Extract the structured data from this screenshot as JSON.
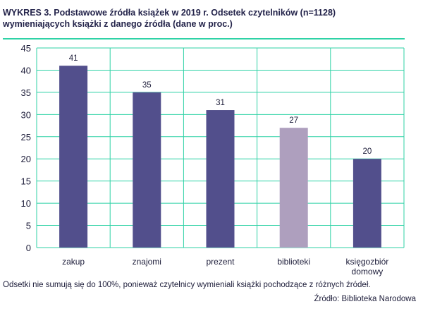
{
  "title": {
    "line1": "WYKRES 3. Podstawowe źródła książek w 2019 r. Odsetek czytelników (n=1128)",
    "line2": "wymieniających książki z danego źródła (dane w proc.)"
  },
  "footnote": "Odsetki nie sumują się do 100%, ponieważ czytelnicy wymieniali książki pochodzące z różnych źródeł.",
  "source": "Źródło: Biblioteka Narodowa",
  "colors": {
    "bar": "#524f8c",
    "bar_highlight": "#ae9fbe",
    "grid": "#2fd2a6",
    "axis_text": "#1d1d3a"
  },
  "chart_data": {
    "type": "bar",
    "title": "Podstawowe źródła książek w 2019 r.",
    "categories": [
      [
        "zakup"
      ],
      [
        "znajomi"
      ],
      [
        "prezent"
      ],
      [
        "biblioteki"
      ],
      [
        "księgozbiór",
        "domowy"
      ]
    ],
    "values": [
      41,
      35,
      31,
      27,
      20
    ],
    "value_labels": [
      "41",
      "35",
      "31",
      "27",
      "20"
    ],
    "highlight_index": 3,
    "ylim": [
      0,
      45
    ],
    "yticks": [
      0,
      5,
      10,
      15,
      20,
      25,
      30,
      35,
      40,
      45
    ],
    "xlabel": "",
    "ylabel": "",
    "grid": true
  }
}
